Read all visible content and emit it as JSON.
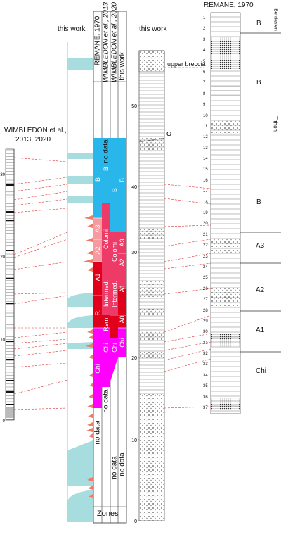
{
  "headings": {
    "this_work_left": "this work",
    "this_work_right": "this work",
    "wimbledon": "WIMBLEDON et al.,",
    "wimbledon_years": "2013, 2020",
    "remane": "REMANE, 1970"
  },
  "column_titles": [
    "REMANE, 1970",
    "WIMBLEDON et al., 2013",
    "WIMBLEDON et al., 2020",
    "this work"
  ],
  "zones_label": "Zones",
  "no_data": "no data",
  "zones": {
    "B": "B",
    "A3": "A3",
    "A2": "A2",
    "A1": "A1",
    "A0": "A0",
    "Chi": "Chi",
    "colomi": "Colomi",
    "intermed": "Intermed.",
    "r": "R.",
    "rem": "Rem."
  },
  "middle_axis_ticks": [
    "50",
    "40",
    "30",
    "20",
    "10",
    "0"
  ],
  "left_axis_ticks": [
    "30",
    "20",
    "10",
    "0"
  ],
  "annotations": {
    "upper_breccia": "upper breccia",
    "phi": "φ"
  },
  "remane_side": {
    "berriasian": "Berriasien",
    "tithon": "Tithon",
    "B_top": "B",
    "B_low": "B",
    "B_mid": "B",
    "A3": "A3",
    "A2": "A2",
    "A1": "A1",
    "Chi": "Chi"
  },
  "remane_bed_numbers": [
    "1",
    "2",
    "3",
    "4",
    "5",
    "6",
    "7",
    "8",
    "9",
    "10",
    "11",
    "12",
    "13",
    "14",
    "15",
    "16",
    "17",
    "18",
    "19",
    "20",
    "21",
    "22",
    "23",
    "24",
    "25",
    "26",
    "27",
    "28",
    "29",
    "30",
    "31",
    "32",
    "33",
    "34",
    "35",
    "36",
    "37"
  ],
  "colors": {
    "blue": "#29b6ea",
    "light_blue": "#a8dde0",
    "magenta": "#ff00ff",
    "red": "#e0001b",
    "pink": "#ee3a66",
    "light_pink": "#f49aa0",
    "salmon": "#ef7b67"
  }
}
